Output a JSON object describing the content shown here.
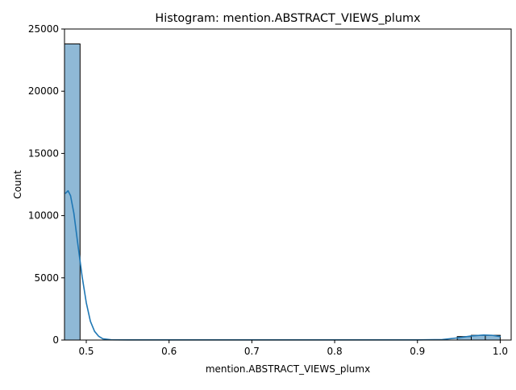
{
  "chart_data": {
    "type": "bar",
    "title": "Histogram: mention.ABSTRACT_VIEWS_plumx",
    "xlabel": "mention.ABSTRACT_VIEWS_plumx",
    "ylabel": "Count",
    "xlim": [
      0.4737,
      1.0132
    ],
    "ylim": [
      0,
      25000
    ],
    "x_ticks": [
      0.5,
      0.6,
      0.7,
      0.8,
      0.9,
      1.0
    ],
    "x_tick_labels": [
      "0.5",
      "0.6",
      "0.7",
      "0.8",
      "0.9",
      "1.0"
    ],
    "y_ticks": [
      0,
      5000,
      10000,
      15000,
      20000,
      25000
    ],
    "y_tick_labels": [
      "0",
      "5000",
      "10000",
      "15000",
      "20000",
      "25000"
    ],
    "bins": [
      {
        "x0": 0.4737,
        "x1": 0.4925,
        "count": 23800
      },
      {
        "x0": 0.9481,
        "x1": 0.965,
        "count": 280
      },
      {
        "x0": 0.965,
        "x1": 0.982,
        "count": 380
      },
      {
        "x0": 0.982,
        "x1": 1.0,
        "count": 380
      }
    ],
    "kde": [
      {
        "x": 0.475,
        "y": 11800
      },
      {
        "x": 0.478,
        "y": 12000
      },
      {
        "x": 0.481,
        "y": 11600
      },
      {
        "x": 0.485,
        "y": 10200
      },
      {
        "x": 0.49,
        "y": 7600
      },
      {
        "x": 0.495,
        "y": 5100
      },
      {
        "x": 0.5,
        "y": 3000
      },
      {
        "x": 0.505,
        "y": 1500
      },
      {
        "x": 0.51,
        "y": 700
      },
      {
        "x": 0.515,
        "y": 300
      },
      {
        "x": 0.52,
        "y": 100
      },
      {
        "x": 0.53,
        "y": 20
      },
      {
        "x": 0.55,
        "y": 10
      },
      {
        "x": 0.6,
        "y": 10
      },
      {
        "x": 0.7,
        "y": 10
      },
      {
        "x": 0.8,
        "y": 10
      },
      {
        "x": 0.9,
        "y": 10
      },
      {
        "x": 0.93,
        "y": 40
      },
      {
        "x": 0.95,
        "y": 180
      },
      {
        "x": 0.965,
        "y": 330
      },
      {
        "x": 0.98,
        "y": 400
      },
      {
        "x": 0.99,
        "y": 380
      },
      {
        "x": 1.0,
        "y": 280
      }
    ],
    "colors": {
      "bar_fill": "#8fb9d6",
      "bar_edge": "#000000",
      "kde_line": "#1f77b4"
    },
    "grid": false,
    "legend": "none"
  }
}
